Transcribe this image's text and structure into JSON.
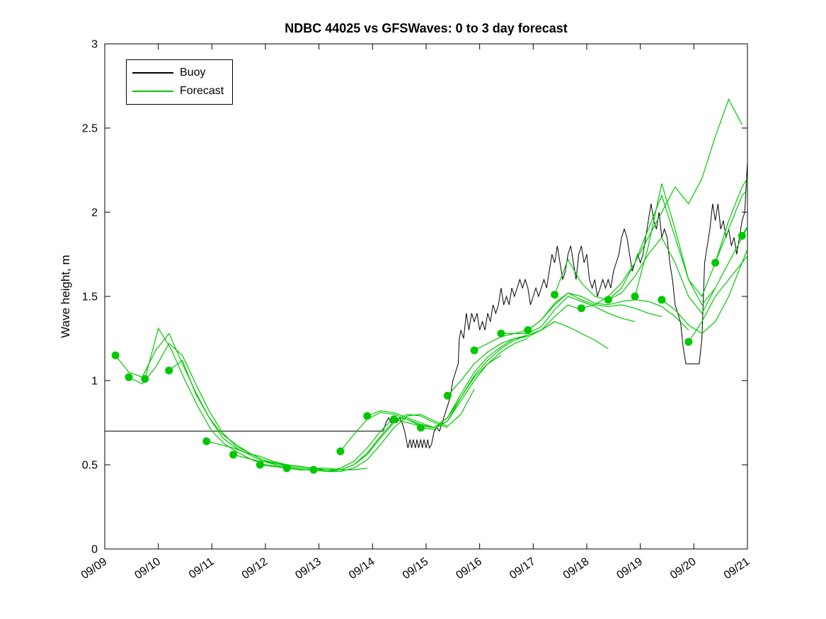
{
  "chart_data": {
    "type": "line",
    "title": "NDBC 44025 vs GFSWaves: 0 to 3 day forecast",
    "xlabel": "",
    "ylabel": "Wave height, m",
    "xlim": [
      9,
      21
    ],
    "ylim": [
      0,
      3
    ],
    "grid": false,
    "legend_position": "top-left",
    "x_ticks": [
      9,
      10,
      11,
      12,
      13,
      14,
      15,
      16,
      17,
      18,
      19,
      20,
      21
    ],
    "x_tick_labels": [
      "09/09",
      "09/10",
      "09/11",
      "09/12",
      "09/13",
      "09/14",
      "09/15",
      "09/16",
      "09/17",
      "09/18",
      "09/19",
      "09/20",
      "09/21"
    ],
    "y_ticks": [
      0,
      0.5,
      1,
      1.5,
      2,
      2.5,
      3
    ],
    "y_tick_labels": [
      "0",
      "0.5",
      "1",
      "1.5",
      "2",
      "2.5",
      "3"
    ],
    "legend": [
      {
        "label": "Buoy",
        "color": "#000000"
      },
      {
        "label": "Forecast",
        "color": "#00c800"
      }
    ],
    "colors": {
      "buoy": "#000000",
      "forecast": "#00c800",
      "marker": "#00c800"
    },
    "buoy": {
      "name": "Buoy",
      "points": [
        [
          9.0,
          0.7
        ],
        [
          14.2,
          0.7
        ],
        [
          14.25,
          0.75
        ],
        [
          14.3,
          0.78
        ],
        [
          14.35,
          0.75
        ],
        [
          14.4,
          0.78
        ],
        [
          14.45,
          0.75
        ],
        [
          14.5,
          0.78
        ],
        [
          14.55,
          0.75
        ],
        [
          14.6,
          0.7
        ],
        [
          14.63,
          0.65
        ],
        [
          14.66,
          0.6
        ],
        [
          14.7,
          0.65
        ],
        [
          14.73,
          0.6
        ],
        [
          14.76,
          0.65
        ],
        [
          14.8,
          0.6
        ],
        [
          14.83,
          0.65
        ],
        [
          14.86,
          0.6
        ],
        [
          14.9,
          0.65
        ],
        [
          14.93,
          0.6
        ],
        [
          14.96,
          0.65
        ],
        [
          15.0,
          0.6
        ],
        [
          15.03,
          0.65
        ],
        [
          15.06,
          0.6
        ],
        [
          15.1,
          0.62
        ],
        [
          15.15,
          0.7
        ],
        [
          15.2,
          0.72
        ],
        [
          15.25,
          0.7
        ],
        [
          15.3,
          0.75
        ],
        [
          15.35,
          0.8
        ],
        [
          15.4,
          0.85
        ],
        [
          15.45,
          0.9
        ],
        [
          15.5,
          1.0
        ],
        [
          15.55,
          1.05
        ],
        [
          15.6,
          1.1
        ],
        [
          15.62,
          1.25
        ],
        [
          15.65,
          1.3
        ],
        [
          15.7,
          1.25
        ],
        [
          15.75,
          1.4
        ],
        [
          15.8,
          1.3
        ],
        [
          15.85,
          1.4
        ],
        [
          15.9,
          1.35
        ],
        [
          15.95,
          1.4
        ],
        [
          16.0,
          1.3
        ],
        [
          16.05,
          1.35
        ],
        [
          16.1,
          1.3
        ],
        [
          16.15,
          1.4
        ],
        [
          16.2,
          1.35
        ],
        [
          16.25,
          1.45
        ],
        [
          16.3,
          1.4
        ],
        [
          16.35,
          1.45
        ],
        [
          16.4,
          1.55
        ],
        [
          16.45,
          1.45
        ],
        [
          16.5,
          1.5
        ],
        [
          16.55,
          1.45
        ],
        [
          16.6,
          1.55
        ],
        [
          16.65,
          1.5
        ],
        [
          16.7,
          1.55
        ],
        [
          16.75,
          1.6
        ],
        [
          16.8,
          1.55
        ],
        [
          16.85,
          1.6
        ],
        [
          16.9,
          1.55
        ],
        [
          16.95,
          1.45
        ],
        [
          17.0,
          1.5
        ],
        [
          17.05,
          1.55
        ],
        [
          17.1,
          1.5
        ],
        [
          17.15,
          1.55
        ],
        [
          17.2,
          1.6
        ],
        [
          17.25,
          1.55
        ],
        [
          17.3,
          1.65
        ],
        [
          17.35,
          1.75
        ],
        [
          17.4,
          1.7
        ],
        [
          17.45,
          1.8
        ],
        [
          17.5,
          1.7
        ],
        [
          17.55,
          1.6
        ],
        [
          17.6,
          1.65
        ],
        [
          17.65,
          1.75
        ],
        [
          17.7,
          1.8
        ],
        [
          17.75,
          1.7
        ],
        [
          17.8,
          1.6
        ],
        [
          17.85,
          1.75
        ],
        [
          17.9,
          1.8
        ],
        [
          17.95,
          1.7
        ],
        [
          18.0,
          1.75
        ],
        [
          18.05,
          1.6
        ],
        [
          18.1,
          1.55
        ],
        [
          18.15,
          1.6
        ],
        [
          18.2,
          1.5
        ],
        [
          18.25,
          1.55
        ],
        [
          18.3,
          1.6
        ],
        [
          18.35,
          1.55
        ],
        [
          18.4,
          1.6
        ],
        [
          18.45,
          1.55
        ],
        [
          18.5,
          1.65
        ],
        [
          18.55,
          1.7
        ],
        [
          18.6,
          1.75
        ],
        [
          18.65,
          1.85
        ],
        [
          18.7,
          1.9
        ],
        [
          18.75,
          1.85
        ],
        [
          18.8,
          1.75
        ],
        [
          18.85,
          1.65
        ],
        [
          18.9,
          1.7
        ],
        [
          18.95,
          1.75
        ],
        [
          19.0,
          1.7
        ],
        [
          19.05,
          1.75
        ],
        [
          19.1,
          1.85
        ],
        [
          19.15,
          1.95
        ],
        [
          19.2,
          2.05
        ],
        [
          19.25,
          1.95
        ],
        [
          19.3,
          1.9
        ],
        [
          19.35,
          2.0
        ],
        [
          19.4,
          1.85
        ],
        [
          19.45,
          1.9
        ],
        [
          19.5,
          1.85
        ],
        [
          19.55,
          1.7
        ],
        [
          19.6,
          1.6
        ],
        [
          19.65,
          1.45
        ],
        [
          19.7,
          1.4
        ],
        [
          19.75,
          1.35
        ],
        [
          19.8,
          1.2
        ],
        [
          19.85,
          1.1
        ],
        [
          20.1,
          1.1
        ],
        [
          20.15,
          1.25
        ],
        [
          20.2,
          1.7
        ],
        [
          20.3,
          1.9
        ],
        [
          20.35,
          2.05
        ],
        [
          20.4,
          1.95
        ],
        [
          20.45,
          2.05
        ],
        [
          20.5,
          1.9
        ],
        [
          20.55,
          1.95
        ],
        [
          20.6,
          1.85
        ],
        [
          20.65,
          1.9
        ],
        [
          20.7,
          1.8
        ],
        [
          20.75,
          1.85
        ],
        [
          20.8,
          1.75
        ],
        [
          20.85,
          1.85
        ],
        [
          20.9,
          1.95
        ],
        [
          20.95,
          2.0
        ],
        [
          21.0,
          2.3
        ]
      ]
    },
    "forecast_runs": [
      {
        "t0": 9.2,
        "dt": 0.25,
        "y": [
          1.15,
          1.05,
          1.02,
          1.18,
          1.28,
          1.1,
          0.93,
          0.78,
          0.66,
          0.6,
          0.56,
          0.52,
          0.5
        ]
      },
      {
        "t0": 9.45,
        "dt": 0.25,
        "y": [
          1.02,
          0.98,
          1.08,
          1.22,
          1.15,
          0.98,
          0.82,
          0.69,
          0.61,
          0.57,
          0.53,
          0.5,
          0.49
        ]
      },
      {
        "t0": 9.75,
        "dt": 0.25,
        "y": [
          1.01,
          1.31,
          1.18,
          1.0,
          0.84,
          0.7,
          0.62,
          0.57,
          0.53,
          0.5,
          0.49,
          0.48,
          0.47
        ]
      },
      {
        "t0": 10.2,
        "dt": 0.25,
        "y": [
          1.06,
          1.12,
          0.92,
          0.78,
          0.68,
          0.62,
          0.57,
          0.53,
          0.51,
          0.49,
          0.48,
          0.47,
          0.47
        ]
      },
      {
        "t0": 10.9,
        "dt": 0.25,
        "y": [
          0.64,
          0.62,
          0.6,
          0.57,
          0.55,
          0.52,
          0.5,
          0.49,
          0.48,
          0.48,
          0.47,
          0.47,
          0.48
        ]
      },
      {
        "t0": 11.4,
        "dt": 0.25,
        "y": [
          0.56,
          0.54,
          0.52,
          0.51,
          0.5,
          0.49,
          0.48,
          0.47,
          0.47,
          0.5,
          0.56,
          0.66,
          0.75
        ]
      },
      {
        "t0": 11.9,
        "dt": 0.25,
        "y": [
          0.5,
          0.49,
          0.48,
          0.47,
          0.47,
          0.46,
          0.48,
          0.52,
          0.6,
          0.7,
          0.78,
          0.77,
          0.73
        ]
      },
      {
        "t0": 12.4,
        "dt": 0.25,
        "y": [
          0.48,
          0.47,
          0.47,
          0.46,
          0.47,
          0.5,
          0.57,
          0.67,
          0.76,
          0.8,
          0.79,
          0.75,
          0.72
        ]
      },
      {
        "t0": 12.9,
        "dt": 0.25,
        "y": [
          0.47,
          0.46,
          0.46,
          0.48,
          0.53,
          0.62,
          0.72,
          0.79,
          0.8,
          0.76,
          0.73,
          0.8,
          0.95
        ]
      },
      {
        "t0": 13.4,
        "dt": 0.25,
        "y": [
          0.58,
          0.68,
          0.77,
          0.81,
          0.8,
          0.77,
          0.74,
          0.72,
          0.78,
          0.9,
          1.02,
          1.1,
          1.15
        ]
      },
      {
        "t0": 13.9,
        "dt": 0.25,
        "y": [
          0.79,
          0.82,
          0.81,
          0.78,
          0.75,
          0.72,
          0.76,
          0.88,
          1.0,
          1.1,
          1.17,
          1.22,
          1.25
        ]
      },
      {
        "t0": 14.4,
        "dt": 0.25,
        "y": [
          0.77,
          0.75,
          0.73,
          0.72,
          0.78,
          0.92,
          1.05,
          1.14,
          1.2,
          1.25,
          1.27,
          1.3,
          1.35
        ]
      },
      {
        "t0": 14.9,
        "dt": 0.25,
        "y": [
          0.72,
          0.71,
          0.76,
          0.9,
          1.03,
          1.12,
          1.19,
          1.24,
          1.27,
          1.3,
          1.38,
          1.45,
          1.42
        ]
      },
      {
        "t0": 15.4,
        "dt": 0.25,
        "y": [
          0.91,
          1.0,
          1.1,
          1.17,
          1.22,
          1.25,
          1.26,
          1.3,
          1.35,
          1.32,
          1.28,
          1.24,
          1.19
        ]
      },
      {
        "t0": 15.9,
        "dt": 0.25,
        "y": [
          1.18,
          1.22,
          1.26,
          1.28,
          1.28,
          1.32,
          1.42,
          1.5,
          1.47,
          1.44,
          1.4,
          1.37,
          1.35
        ]
      },
      {
        "t0": 16.4,
        "dt": 0.25,
        "y": [
          1.28,
          1.28,
          1.3,
          1.36,
          1.46,
          1.52,
          1.48,
          1.45,
          1.44,
          1.45,
          1.43,
          1.4,
          1.38
        ]
      },
      {
        "t0": 16.9,
        "dt": 0.25,
        "y": [
          1.3,
          1.36,
          1.45,
          1.52,
          1.5,
          1.46,
          1.45,
          1.47,
          1.48,
          1.47,
          1.44,
          1.38,
          1.3
        ]
      },
      {
        "t0": 17.4,
        "dt": 0.25,
        "y": [
          1.51,
          1.72,
          1.58,
          1.5,
          1.48,
          1.52,
          1.62,
          1.75,
          1.85,
          1.7,
          1.5,
          1.4,
          1.55
        ]
      },
      {
        "t0": 17.9,
        "dt": 0.25,
        "y": [
          1.43,
          1.45,
          1.5,
          1.58,
          1.7,
          1.85,
          2.0,
          2.15,
          2.05,
          2.2,
          2.45,
          2.67,
          2.52
        ]
      },
      {
        "t0": 18.4,
        "dt": 0.25,
        "y": [
          1.48,
          1.55,
          1.7,
          1.9,
          2.1,
          1.85,
          1.6,
          1.5,
          1.7,
          1.95,
          2.15,
          2.28,
          2.35
        ]
      },
      {
        "t0": 18.9,
        "dt": 0.25,
        "y": [
          1.5,
          1.8,
          2.17,
          1.9,
          1.6,
          1.45,
          1.55,
          1.7,
          1.85,
          2.0,
          2.12,
          2.22,
          2.3
        ]
      },
      {
        "t0": 19.4,
        "dt": 0.25,
        "y": [
          1.48,
          1.42,
          1.33,
          1.28,
          1.35,
          1.5,
          1.7,
          1.9,
          2.05,
          2.15,
          2.22,
          2.28,
          2.32
        ]
      },
      {
        "t0": 19.9,
        "dt": 0.25,
        "y": [
          1.23,
          1.35,
          1.5,
          1.6,
          1.7,
          1.8,
          1.9,
          2.0,
          2.08,
          2.15,
          2.2,
          2.25,
          2.3
        ]
      },
      {
        "t0": 20.4,
        "dt": 0.25,
        "y": [
          1.7,
          1.9,
          2.1,
          2.18,
          2.25,
          2.3,
          2.35,
          2.4,
          2.42,
          2.45,
          2.47,
          2.48,
          2.5
        ]
      },
      {
        "t0": 20.9,
        "dt": 0.25,
        "y": [
          1.86,
          2.0,
          2.1,
          2.18,
          2.25,
          2.3,
          2.35,
          2.4,
          2.45,
          2.48,
          2.5,
          2.52,
          2.55
        ]
      }
    ]
  }
}
